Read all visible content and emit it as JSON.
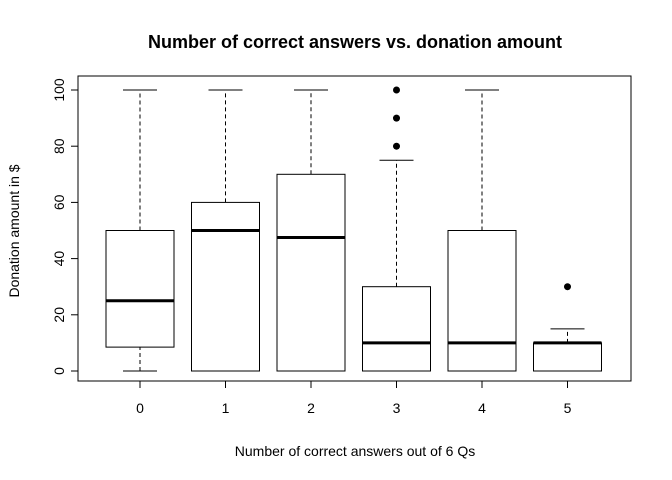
{
  "chart_data": {
    "type": "boxplot",
    "title": "Number of correct answers vs. donation amount",
    "xlabel": "Number of correct answers out of 6 Qs",
    "ylabel": "Donation amount in $",
    "ylim": [
      -5,
      105
    ],
    "yticks": [
      0,
      20,
      40,
      60,
      80,
      100
    ],
    "categories": [
      "0",
      "1",
      "2",
      "3",
      "4",
      "5"
    ],
    "boxes": [
      {
        "category": "0",
        "whisker_low": 0,
        "q1": 8.5,
        "median": 25,
        "q3": 50,
        "whisker_high": 100,
        "outliers": []
      },
      {
        "category": "1",
        "whisker_low": 0,
        "q1": 0,
        "median": 50,
        "q3": 60,
        "whisker_high": 100,
        "outliers": []
      },
      {
        "category": "2",
        "whisker_low": 0,
        "q1": 0,
        "median": 47.5,
        "q3": 70,
        "whisker_high": 100,
        "outliers": []
      },
      {
        "category": "3",
        "whisker_low": 0,
        "q1": 0,
        "median": 10,
        "q3": 30,
        "whisker_high": 75,
        "outliers": [
          80,
          90,
          100
        ]
      },
      {
        "category": "4",
        "whisker_low": 0,
        "q1": 0,
        "median": 10,
        "q3": 50,
        "whisker_high": 100,
        "outliers": []
      },
      {
        "category": "5",
        "whisker_low": 0,
        "q1": 0,
        "median": 10,
        "q3": 10,
        "whisker_high": 15,
        "outliers": [
          30
        ]
      }
    ],
    "grid": false,
    "legend": "none"
  }
}
